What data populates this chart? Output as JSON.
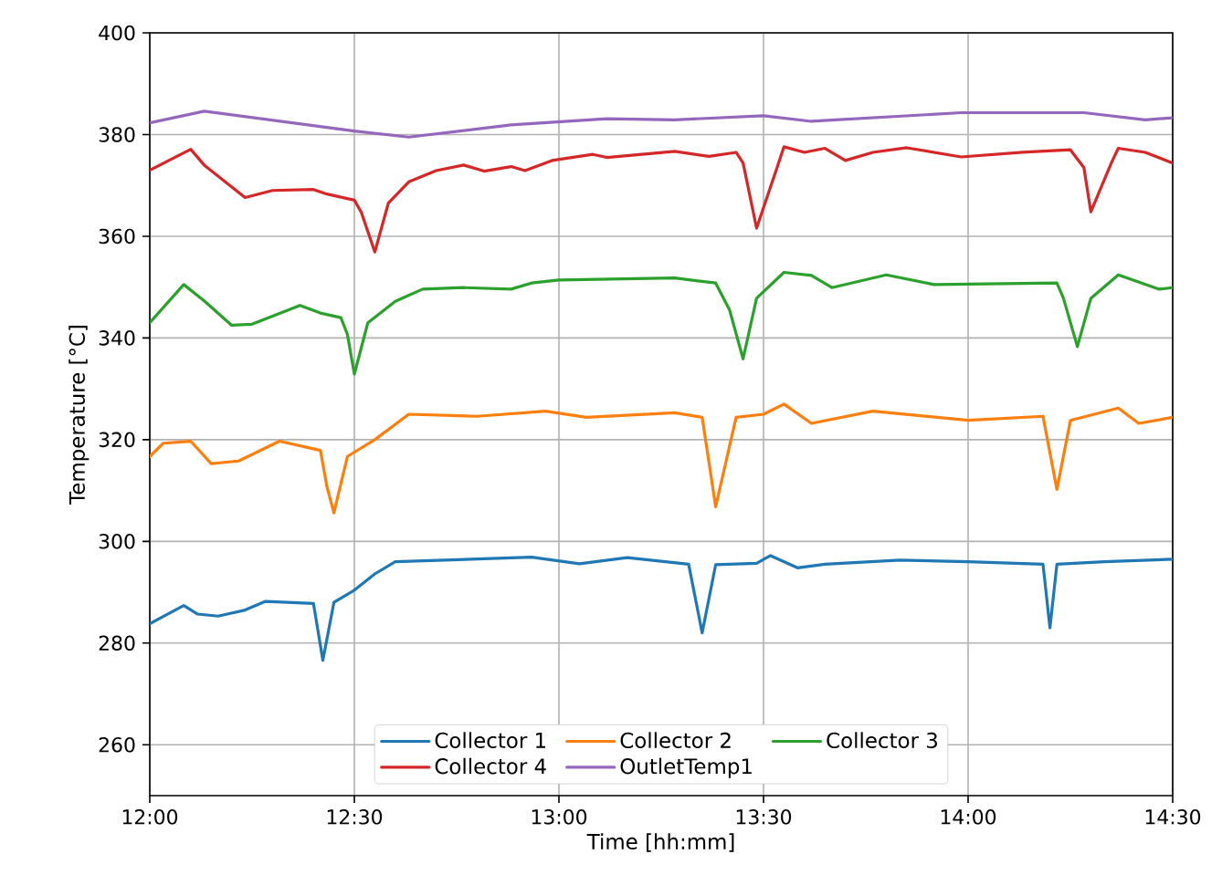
{
  "chart_data": {
    "type": "line",
    "xlabel": "Time [hh:mm]",
    "ylabel": "Temperature [°C]",
    "xlim": [
      12,
      14.5
    ],
    "ylim": [
      250,
      400
    ],
    "xticks": [
      {
        "value": 12,
        "label": "12:00"
      },
      {
        "value": 12.5,
        "label": "12:30"
      },
      {
        "value": 13,
        "label": "13:00"
      },
      {
        "value": 13.5,
        "label": "13:30"
      },
      {
        "value": 14,
        "label": "14:00"
      },
      {
        "value": 14.5,
        "label": "14:30"
      }
    ],
    "yticks": [
      260,
      280,
      300,
      320,
      340,
      360,
      380,
      400
    ],
    "grid": true,
    "legend": "bottom",
    "line_style": "solid",
    "series": [
      {
        "name": "Collector 1",
        "color": "#1f77b4",
        "x": [
          12,
          12.083,
          12.117,
          12.167,
          12.233,
          12.283,
          12.4,
          12.423,
          12.45,
          12.5,
          12.55,
          12.6,
          12.933,
          13.05,
          13.167,
          13.317,
          13.35,
          13.383,
          13.483,
          13.517,
          13.583,
          13.65,
          13.833,
          14,
          14.183,
          14.2,
          14.217,
          14.333,
          14.5
        ],
        "values": [
          283.8,
          287.4,
          285.7,
          285.3,
          286.5,
          288.2,
          287.8,
          276.6,
          288,
          290.4,
          293.6,
          296,
          296.9,
          295.6,
          296.8,
          295.5,
          282,
          295.4,
          295.7,
          297.2,
          294.8,
          295.5,
          296.3,
          296,
          295.5,
          283,
          295.5,
          296,
          296.5
        ]
      },
      {
        "name": "Collector 2",
        "color": "#ff7f0e",
        "x": [
          12,
          12.033,
          12.1,
          12.15,
          12.217,
          12.317,
          12.417,
          12.433,
          12.45,
          12.483,
          12.55,
          12.633,
          12.8,
          12.967,
          13.067,
          13.283,
          13.35,
          13.383,
          13.433,
          13.5,
          13.55,
          13.617,
          13.767,
          14,
          14.183,
          14.217,
          14.25,
          14.367,
          14.417,
          14.5
        ],
        "values": [
          316.7,
          319.3,
          319.7,
          315.3,
          315.8,
          319.7,
          317.9,
          310.7,
          305.6,
          316.7,
          320,
          325,
          324.6,
          325.6,
          324.4,
          325.3,
          324.4,
          306.8,
          324.4,
          325,
          327,
          323.2,
          325.6,
          323.8,
          324.6,
          310.2,
          323.8,
          326.2,
          323.2,
          324.4
        ]
      },
      {
        "name": "Collector 3",
        "color": "#2ca02c",
        "x": [
          12,
          12.083,
          12.133,
          12.2,
          12.25,
          12.367,
          12.417,
          12.467,
          12.483,
          12.5,
          12.533,
          12.6,
          12.667,
          12.767,
          12.883,
          12.933,
          13,
          13.283,
          13.383,
          13.417,
          13.45,
          13.483,
          13.55,
          13.617,
          13.667,
          13.8,
          13.917,
          14.217,
          14.233,
          14.267,
          14.3,
          14.367,
          14.467,
          14.5
        ],
        "values": [
          343,
          350.5,
          347.3,
          342.5,
          342.7,
          346.4,
          344.9,
          344,
          340.7,
          332.9,
          343,
          347.2,
          349.6,
          349.9,
          349.6,
          350.8,
          351.4,
          351.8,
          350.8,
          345.5,
          335.9,
          347.8,
          352.9,
          352.3,
          349.9,
          352.4,
          350.5,
          350.8,
          347.8,
          338.3,
          347.8,
          352.4,
          349.6,
          349.9
        ]
      },
      {
        "name": "Collector 4",
        "color": "#d62728",
        "x": [
          12,
          12.1,
          12.133,
          12.233,
          12.3,
          12.4,
          12.433,
          12.5,
          12.517,
          12.55,
          12.583,
          12.633,
          12.7,
          12.767,
          12.817,
          12.883,
          12.917,
          12.983,
          13.083,
          13.117,
          13.283,
          13.367,
          13.433,
          13.45,
          13.483,
          13.533,
          13.55,
          13.6,
          13.65,
          13.7,
          13.767,
          13.85,
          13.983,
          14.133,
          14.25,
          14.283,
          14.3,
          14.35,
          14.367,
          14.433,
          14.5
        ],
        "values": [
          373,
          377.1,
          374,
          367.6,
          369,
          369.2,
          368.3,
          367.1,
          364.7,
          356.9,
          366.5,
          370.7,
          372.9,
          374,
          372.8,
          373.7,
          372.9,
          374.9,
          376.1,
          375.5,
          376.7,
          375.7,
          376.5,
          374.4,
          361.6,
          373.5,
          377.6,
          376.5,
          377.3,
          374.9,
          376.5,
          377.4,
          375.6,
          376.5,
          377,
          373.5,
          364.8,
          374.4,
          377.3,
          376.5,
          374.4
        ]
      },
      {
        "name": "OutletTemp1",
        "color": "#9467bd",
        "x": [
          12,
          12.133,
          12.5,
          12.633,
          12.883,
          13.117,
          13.283,
          13.5,
          13.617,
          13.983,
          14.283,
          14.433,
          14.5
        ],
        "values": [
          382.3,
          384.6,
          380.7,
          379.5,
          381.9,
          383.1,
          382.9,
          383.7,
          382.6,
          384.3,
          384.3,
          382.9,
          383.3
        ]
      }
    ]
  }
}
